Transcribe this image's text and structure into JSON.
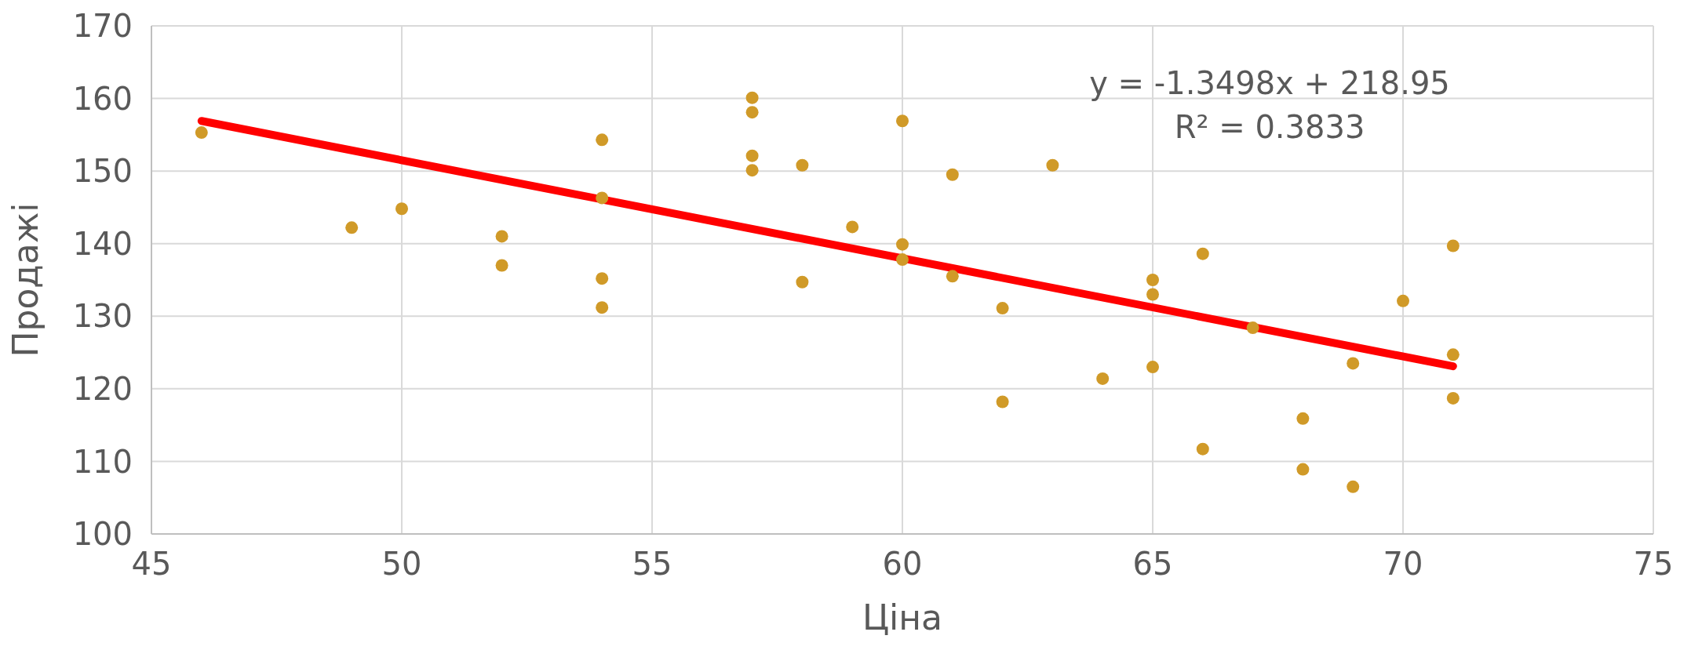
{
  "chart_data": {
    "type": "scatter",
    "xlabel": "Ціна",
    "ylabel": "Продажі",
    "annotations": [
      "y = -1.3498x + 218.95",
      "R² = 0.3833"
    ],
    "xlim": [
      45,
      75
    ],
    "xticks": [
      45,
      50,
      55,
      60,
      65,
      70,
      75
    ],
    "ylim": [
      100,
      170
    ],
    "yticks": [
      100,
      110,
      120,
      130,
      140,
      150,
      160,
      170
    ],
    "grid": true,
    "series": [
      {
        "marker": "circle",
        "color": "#d09a28",
        "x": [
          46,
          49,
          50,
          52,
          52,
          54,
          54,
          54,
          54,
          57,
          57,
          57,
          57,
          58,
          58,
          59,
          60,
          60,
          60,
          61,
          61,
          62,
          62,
          63,
          64,
          65,
          65,
          65,
          66,
          66,
          67,
          68,
          68,
          69,
          69,
          70,
          71,
          71,
          71
        ],
        "values": [
          155.3,
          142.2,
          144.8,
          141.0,
          137.0,
          154.3,
          146.3,
          135.2,
          131.2,
          160.1,
          158.1,
          152.1,
          150.1,
          150.8,
          134.7,
          142.3,
          156.9,
          139.9,
          137.8,
          149.5,
          135.5,
          131.1,
          118.2,
          150.8,
          121.4,
          135.0,
          133.0,
          123.0,
          138.6,
          111.7,
          128.4,
          115.9,
          108.9,
          123.5,
          106.5,
          132.1,
          139.7,
          124.7,
          118.7
        ]
      },
      {
        "type": "line",
        "marker": "none",
        "color": "#ff0000",
        "x": [
          46,
          71
        ],
        "values": [
          156.9,
          123.1
        ]
      }
    ]
  }
}
